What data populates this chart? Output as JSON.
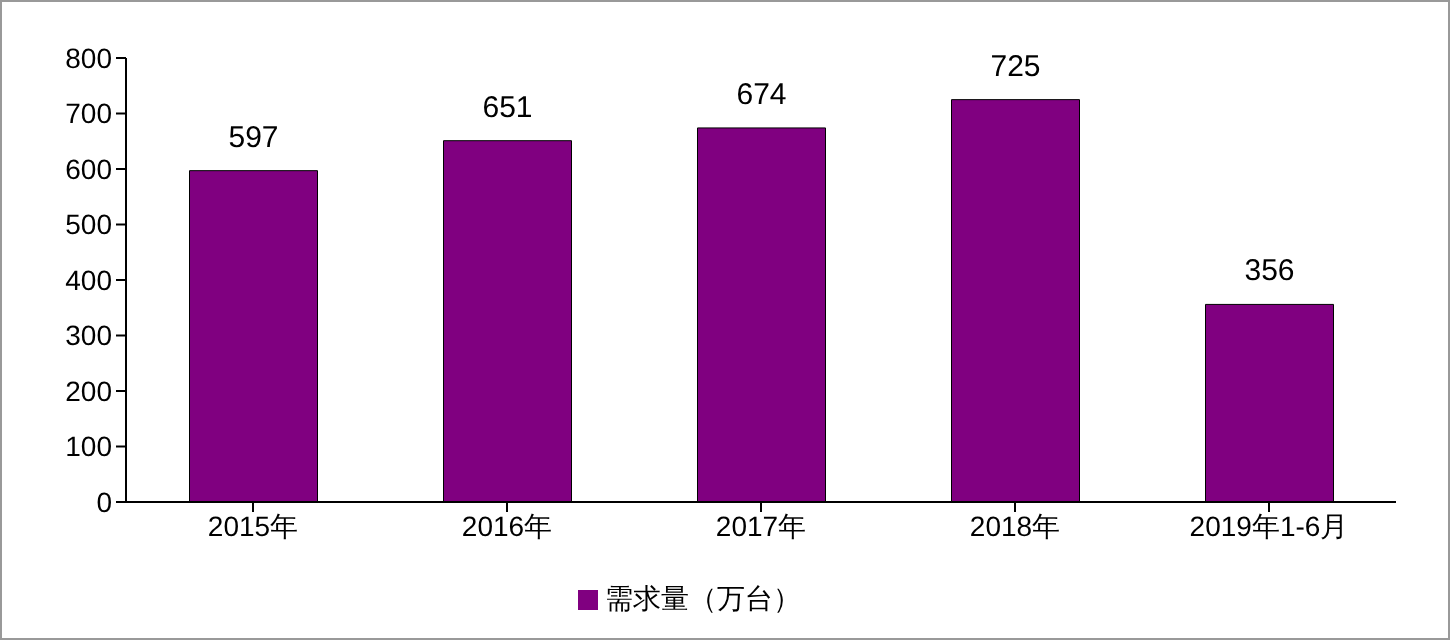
{
  "chart_data": {
    "type": "bar",
    "categories": [
      "2015年",
      "2016年",
      "2017年",
      "2018年",
      "2019年1-6月"
    ],
    "series": [
      {
        "name": "需求量（万台）",
        "color": "#800080",
        "values": [
          597,
          651,
          674,
          725,
          356
        ]
      }
    ],
    "ylim": [
      0,
      800
    ],
    "yticks": [
      0,
      100,
      200,
      300,
      400,
      500,
      600,
      700,
      800
    ],
    "grid": false,
    "legend": "bottom",
    "data_labels": true
  }
}
